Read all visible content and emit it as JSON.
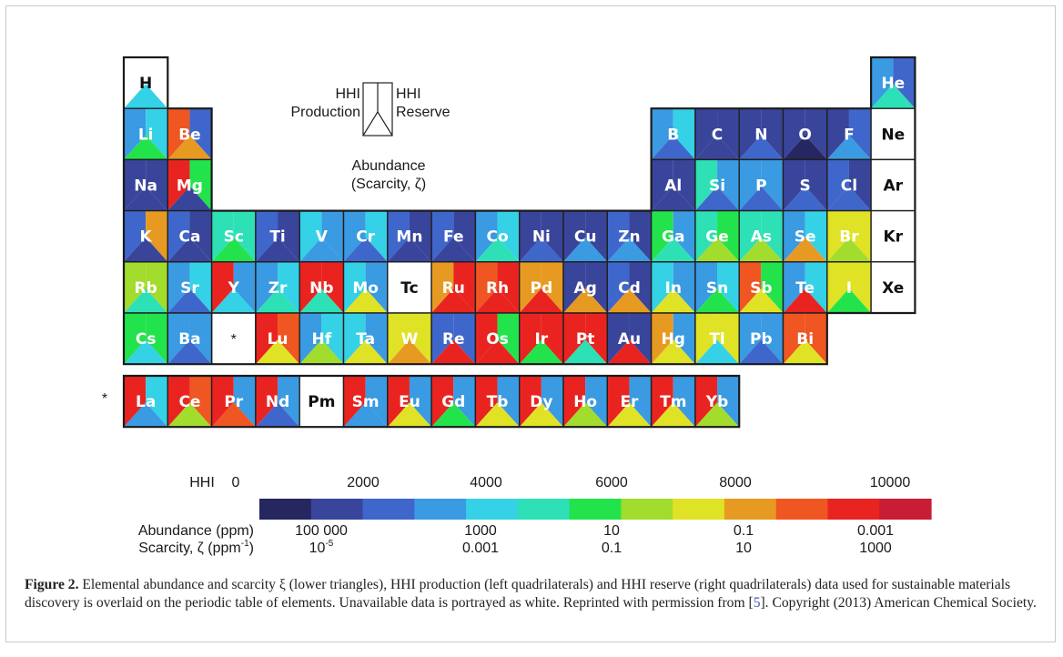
{
  "palette": [
    "#262760",
    "#39459b",
    "#3f66ca",
    "#3a9ae2",
    "#35d1e6",
    "#2ee0b6",
    "#23e34c",
    "#a2dc2c",
    "#e0e225",
    "#e79a22",
    "#ef5622",
    "#e92420",
    "#c81d35"
  ],
  "key": {
    "hhi_production": "HHI\nProduction",
    "hhi_reserve": "HHI\nReserve",
    "abundance": "Abundance\n(Scarcity, ζ)"
  },
  "lanthanide_marker": "*",
  "elements": [
    {
      "s": "H",
      "r": 0,
      "c": 0,
      "L": null,
      "R": null,
      "B": 4
    },
    {
      "s": "He",
      "r": 0,
      "c": 17,
      "L": 3,
      "R": 2,
      "B": 5
    },
    {
      "s": "Li",
      "r": 1,
      "c": 0,
      "L": 3,
      "R": 4,
      "B": 6
    },
    {
      "s": "Be",
      "r": 1,
      "c": 1,
      "L": 10,
      "R": 2,
      "B": 9
    },
    {
      "s": "B",
      "r": 1,
      "c": 12,
      "L": 3,
      "R": 4,
      "B": 2
    },
    {
      "s": "C",
      "r": 1,
      "c": 13,
      "L": 1,
      "R": 1,
      "B": 1
    },
    {
      "s": "N",
      "r": 1,
      "c": 14,
      "L": 1,
      "R": 1,
      "B": 2
    },
    {
      "s": "O",
      "r": 1,
      "c": 15,
      "L": 1,
      "R": 1,
      "B": 0
    },
    {
      "s": "F",
      "r": 1,
      "c": 16,
      "L": 1,
      "R": 2,
      "B": 3
    },
    {
      "s": "Ne",
      "r": 1,
      "c": 17,
      "L": null,
      "R": null,
      "B": null
    },
    {
      "s": "Na",
      "r": 2,
      "c": 0,
      "L": 1,
      "R": 1,
      "B": 1
    },
    {
      "s": "Mg",
      "r": 2,
      "c": 1,
      "L": 11,
      "R": 6,
      "B": 1
    },
    {
      "s": "Al",
      "r": 2,
      "c": 12,
      "L": 1,
      "R": 1,
      "B": 1
    },
    {
      "s": "Si",
      "r": 2,
      "c": 13,
      "L": 5,
      "R": 3,
      "B": 2
    },
    {
      "s": "P",
      "r": 2,
      "c": 14,
      "L": 3,
      "R": 3,
      "B": 2
    },
    {
      "s": "S",
      "r": 2,
      "c": 15,
      "L": 1,
      "R": 1,
      "B": 2
    },
    {
      "s": "Cl",
      "r": 2,
      "c": 16,
      "L": 2,
      "R": 1,
      "B": 2
    },
    {
      "s": "Ar",
      "r": 2,
      "c": 17,
      "L": null,
      "R": null,
      "B": null
    },
    {
      "s": "K",
      "r": 3,
      "c": 0,
      "L": 2,
      "R": 9,
      "B": 1
    },
    {
      "s": "Ca",
      "r": 3,
      "c": 1,
      "L": 2,
      "R": 1,
      "B": 1
    },
    {
      "s": "Sc",
      "r": 3,
      "c": 2,
      "L": 5,
      "R": 5,
      "B": 6
    },
    {
      "s": "Ti",
      "r": 3,
      "c": 3,
      "L": 2,
      "R": 1,
      "B": 1
    },
    {
      "s": "V",
      "r": 3,
      "c": 4,
      "L": 4,
      "R": 3,
      "B": 3
    },
    {
      "s": "Cr",
      "r": 3,
      "c": 5,
      "L": 3,
      "R": 4,
      "B": 2
    },
    {
      "s": "Mn",
      "r": 3,
      "c": 6,
      "L": 2,
      "R": 1,
      "B": 1
    },
    {
      "s": "Fe",
      "r": 3,
      "c": 7,
      "L": 2,
      "R": 1,
      "B": 1
    },
    {
      "s": "Co",
      "r": 3,
      "c": 8,
      "L": 3,
      "R": 4,
      "B": 5
    },
    {
      "s": "Ni",
      "r": 3,
      "c": 9,
      "L": 1,
      "R": 1,
      "B": 2
    },
    {
      "s": "Cu",
      "r": 3,
      "c": 10,
      "L": 1,
      "R": 1,
      "B": 3
    },
    {
      "s": "Zn",
      "r": 3,
      "c": 11,
      "L": 2,
      "R": 1,
      "B": 3
    },
    {
      "s": "Ga",
      "r": 3,
      "c": 12,
      "L": 6,
      "R": 3,
      "B": 5
    },
    {
      "s": "Ge",
      "r": 3,
      "c": 13,
      "L": 5,
      "R": 6,
      "B": 7
    },
    {
      "s": "As",
      "r": 3,
      "c": 14,
      "L": 5,
      "R": 5,
      "B": 7
    },
    {
      "s": "Se",
      "r": 3,
      "c": 15,
      "L": 3,
      "R": 4,
      "B": 9
    },
    {
      "s": "Br",
      "r": 3,
      "c": 16,
      "L": 8,
      "R": 8,
      "B": 7
    },
    {
      "s": "Kr",
      "r": 3,
      "c": 17,
      "L": null,
      "R": null,
      "B": null
    },
    {
      "s": "Rb",
      "r": 4,
      "c": 0,
      "L": 7,
      "R": 7,
      "B": 5
    },
    {
      "s": "Sr",
      "r": 4,
      "c": 1,
      "L": 3,
      "R": 4,
      "B": 2
    },
    {
      "s": "Y",
      "r": 4,
      "c": 2,
      "L": 11,
      "R": 3,
      "B": 4
    },
    {
      "s": "Zr",
      "r": 4,
      "c": 3,
      "L": 3,
      "R": 4,
      "B": 5
    },
    {
      "s": "Nb",
      "r": 4,
      "c": 4,
      "L": 11,
      "R": 11,
      "B": 5
    },
    {
      "s": "Mo",
      "r": 4,
      "c": 5,
      "L": 4,
      "R": 3,
      "B": 8
    },
    {
      "s": "Tc",
      "r": 4,
      "c": 6,
      "L": null,
      "R": null,
      "B": null
    },
    {
      "s": "Ru",
      "r": 4,
      "c": 7,
      "L": 9,
      "R": 11,
      "B": 11
    },
    {
      "s": "Rh",
      "r": 4,
      "c": 8,
      "L": 10,
      "R": 11,
      "B": 11
    },
    {
      "s": "Pd",
      "r": 4,
      "c": 9,
      "L": 9,
      "R": 9,
      "B": 11
    },
    {
      "s": "Ag",
      "r": 4,
      "c": 10,
      "L": 1,
      "R": 1,
      "B": 9
    },
    {
      "s": "Cd",
      "r": 4,
      "c": 11,
      "L": 2,
      "R": 1,
      "B": 9
    },
    {
      "s": "In",
      "r": 4,
      "c": 12,
      "L": 4,
      "R": 3,
      "B": 8
    },
    {
      "s": "Sn",
      "r": 4,
      "c": 13,
      "L": 3,
      "R": 4,
      "B": 6
    },
    {
      "s": "Sb",
      "r": 4,
      "c": 14,
      "L": 10,
      "R": 6,
      "B": 8
    },
    {
      "s": "Te",
      "r": 4,
      "c": 15,
      "L": 3,
      "R": 4,
      "B": 11
    },
    {
      "s": "I",
      "r": 4,
      "c": 16,
      "L": 8,
      "R": 8,
      "B": 6
    },
    {
      "s": "Xe",
      "r": 4,
      "c": 17,
      "L": null,
      "R": null,
      "B": null
    },
    {
      "s": "Cs",
      "r": 5,
      "c": 0,
      "L": 6,
      "R": 6,
      "B": 4
    },
    {
      "s": "Ba",
      "r": 5,
      "c": 1,
      "L": 3,
      "R": 3,
      "B": 2
    },
    {
      "s": "Lu",
      "r": 5,
      "c": 3,
      "L": 11,
      "R": 10,
      "B": 8
    },
    {
      "s": "Hf",
      "r": 5,
      "c": 4,
      "L": 3,
      "R": 4,
      "B": 7
    },
    {
      "s": "Ta",
      "r": 5,
      "c": 5,
      "L": 4,
      "R": 3,
      "B": 8
    },
    {
      "s": "W",
      "r": 5,
      "c": 6,
      "L": 8,
      "R": 8,
      "B": 9
    },
    {
      "s": "Re",
      "r": 5,
      "c": 7,
      "L": 2,
      "R": 2,
      "B": 11
    },
    {
      "s": "Os",
      "r": 5,
      "c": 8,
      "L": 11,
      "R": 6,
      "B": 11
    },
    {
      "s": "Ir",
      "r": 5,
      "c": 9,
      "L": 11,
      "R": 11,
      "B": 6
    },
    {
      "s": "Pt",
      "r": 5,
      "c": 10,
      "L": 11,
      "R": 11,
      "B": 5
    },
    {
      "s": "Au",
      "r": 5,
      "c": 11,
      "L": 1,
      "R": 1,
      "B": 11
    },
    {
      "s": "Hg",
      "r": 5,
      "c": 12,
      "L": 9,
      "R": 3,
      "B": 8
    },
    {
      "s": "Tl",
      "r": 5,
      "c": 13,
      "L": 8,
      "R": 8,
      "B": 4
    },
    {
      "s": "Pb",
      "r": 5,
      "c": 14,
      "L": 3,
      "R": 3,
      "B": 2
    },
    {
      "s": "Bi",
      "r": 5,
      "c": 15,
      "L": 10,
      "R": 10,
      "B": 8
    },
    {
      "s": "La",
      "r": 6,
      "c": 0,
      "L": 11,
      "R": 4,
      "B": 3
    },
    {
      "s": "Ce",
      "r": 6,
      "c": 1,
      "L": 11,
      "R": 10,
      "B": 7
    },
    {
      "s": "Pr",
      "r": 6,
      "c": 2,
      "L": 11,
      "R": 3,
      "B": 10
    },
    {
      "s": "Nd",
      "r": 6,
      "c": 3,
      "L": 11,
      "R": 3,
      "B": 2
    },
    {
      "s": "Pm",
      "r": 6,
      "c": 4,
      "L": null,
      "R": null,
      "B": null
    },
    {
      "s": "Sm",
      "r": 6,
      "c": 5,
      "L": 11,
      "R": 3,
      "B": 3
    },
    {
      "s": "Eu",
      "r": 6,
      "c": 6,
      "L": 11,
      "R": 3,
      "B": 8
    },
    {
      "s": "Gd",
      "r": 6,
      "c": 7,
      "L": 11,
      "R": 3,
      "B": 6
    },
    {
      "s": "Tb",
      "r": 6,
      "c": 8,
      "L": 11,
      "R": 3,
      "B": 8
    },
    {
      "s": "Dy",
      "r": 6,
      "c": 9,
      "L": 11,
      "R": 3,
      "B": 8
    },
    {
      "s": "Ho",
      "r": 6,
      "c": 10,
      "L": 11,
      "R": 3,
      "B": 7
    },
    {
      "s": "Er",
      "r": 6,
      "c": 11,
      "L": 11,
      "R": 3,
      "B": 8
    },
    {
      "s": "Tm",
      "r": 6,
      "c": 12,
      "L": 11,
      "R": 3,
      "B": 8
    },
    {
      "s": "Yb",
      "r": 6,
      "c": 13,
      "L": 11,
      "R": 3,
      "B": 7
    }
  ],
  "legend": {
    "hhi_label": "HHI",
    "hhi_ticks": [
      "0",
      "2000",
      "4000",
      "6000",
      "8000",
      "10000"
    ],
    "abundance_label": "Abundance (ppm)",
    "abundance_ticks": [
      "100 000",
      "1000",
      "10",
      "0.1",
      "0.001"
    ],
    "scarcity_label": "Scarcity, ζ  (ppm",
    "scarcity_label_sup": "-1",
    "scarcity_label_end": ")",
    "scarcity_ticks": [
      {
        "base": "10",
        "sup": "-5"
      },
      {
        "base": "0.001",
        "sup": ""
      },
      {
        "base": "0.1",
        "sup": ""
      },
      {
        "base": "10",
        "sup": ""
      },
      {
        "base": "1000",
        "sup": ""
      }
    ]
  },
  "caption": {
    "label": "Figure 2.",
    "text1": " Elemental abundance and scarcity ξ (lower triangles), HHI production (left quadrilaterals) and HHI reserve (right quadrilaterals) data used for sustainable materials discovery is overlaid on the periodic table of elements. Unavailable data is portrayed as white. Reprinted with permission from [",
    "ref": "5",
    "text2": "]. Copyright (2013) American Chemical Society."
  }
}
